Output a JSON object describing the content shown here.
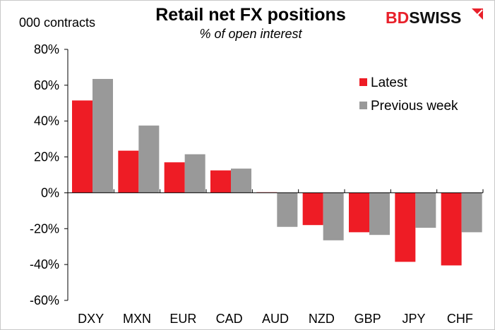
{
  "logo": {
    "text_bd": "BD",
    "text_swiss": "SWISS",
    "color_red": "#e8202a",
    "color_black": "#111111"
  },
  "chart_data": {
    "type": "bar",
    "title": "Retail net FX positions",
    "subtitle": "% of open interest",
    "unit_label": "000 contracts",
    "xlabel": "",
    "ylabel": "",
    "ylim": [
      -60,
      80
    ],
    "yticks": [
      -60,
      -40,
      -20,
      0,
      20,
      40,
      60,
      80
    ],
    "ytick_labels": [
      "-60%",
      "-40%",
      "-20%",
      "0%",
      "20%",
      "40%",
      "60%",
      "80%"
    ],
    "grid": false,
    "legend_position": "top-right",
    "categories": [
      "DXY",
      "MXN",
      "EUR",
      "CAD",
      "AUD",
      "NZD",
      "GBP",
      "JPY",
      "CHF"
    ],
    "series": [
      {
        "name": "Latest",
        "color": "#ee1c25",
        "values": [
          51.5,
          23.5,
          17,
          12.5,
          0.3,
          -18,
          -22,
          -38.5,
          -40.5
        ]
      },
      {
        "name": "Previous week",
        "color": "#999999",
        "values": [
          63.5,
          37.5,
          21.5,
          13.5,
          -19,
          -26.5,
          -23.5,
          -19.5,
          -22
        ]
      }
    ]
  }
}
